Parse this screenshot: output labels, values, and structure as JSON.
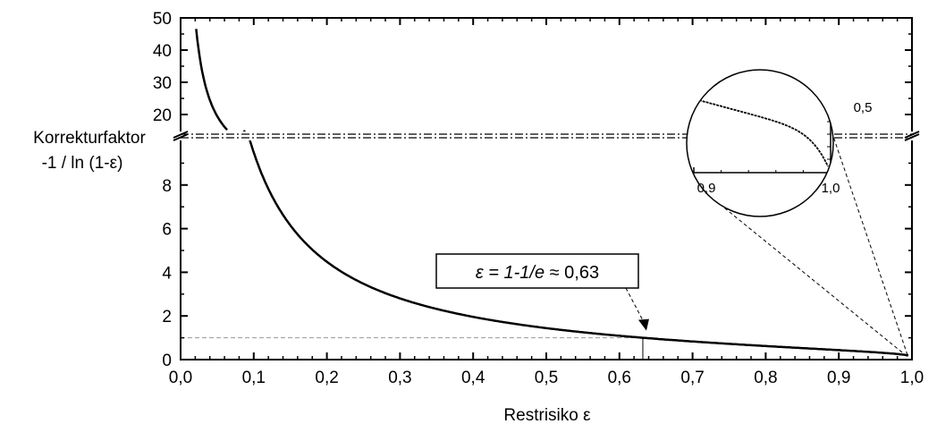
{
  "chart_data": {
    "type": "line",
    "title": "",
    "xlabel": "Restrisiko ε",
    "ylabel_line1": "Korrekturfaktor",
    "ylabel_line2": "-1 / ln (1-ε)",
    "xlim": [
      0.0,
      1.0
    ],
    "ylim_lower": [
      0,
      10
    ],
    "ylim_upper": [
      15,
      50
    ],
    "y_axis_break": true,
    "x_ticks": [
      "0,0",
      "0,1",
      "0,2",
      "0,3",
      "0,4",
      "0,5",
      "0,6",
      "0,7",
      "0,8",
      "0,9",
      "1,0"
    ],
    "y_ticks_lower": [
      "0",
      "2",
      "4",
      "6",
      "8"
    ],
    "y_ticks_upper": [
      "20",
      "30",
      "40",
      "50"
    ],
    "series": [
      {
        "function": "-1/ln(1-ε)",
        "x": [
          0.02,
          0.03,
          0.05,
          0.1,
          0.15,
          0.2,
          0.25,
          0.3,
          0.4,
          0.5,
          0.6,
          0.632,
          0.7,
          0.8,
          0.9,
          0.95,
          0.99
        ],
        "y": [
          49.5,
          32.8,
          19.5,
          9.49,
          6.15,
          4.48,
          3.48,
          2.8,
          1.96,
          1.44,
          1.09,
          1.0,
          0.83,
          0.62,
          0.43,
          0.33,
          0.22
        ]
      }
    ],
    "reference_line": {
      "y": 1,
      "x_end": 0.632
    },
    "annotation": {
      "label_prefix": "ε = 1-1/",
      "label_e": "e",
      "label_suffix": " ≈ 0,63",
      "x": 0.632,
      "y": 1.0
    },
    "inset": {
      "description": "zoom near ε → 1",
      "x_ticks": [
        "0,9",
        "1,0"
      ],
      "y_ticks": [
        "0,5"
      ]
    }
  }
}
